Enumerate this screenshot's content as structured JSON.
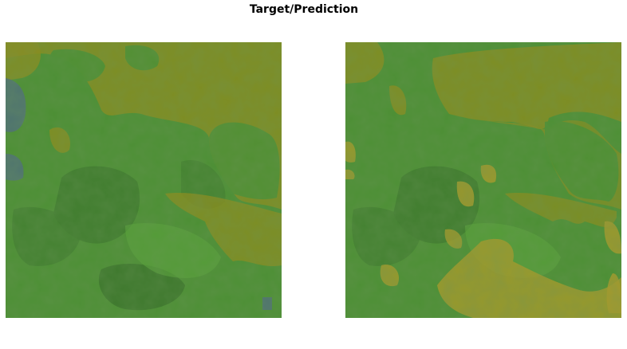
{
  "figure": {
    "title": "Target/Prediction"
  },
  "panels": [
    {
      "role": "target"
    },
    {
      "role": "prediction"
    }
  ],
  "colors": {
    "background_green": "#4c8f34",
    "dark_green": "#3e7a2e",
    "light_green": "#5aa43c",
    "overlay_olive": "#8a8c1e",
    "overlay_orange": "#a89a2a",
    "overlay_blue": "#4f6f7a"
  }
}
